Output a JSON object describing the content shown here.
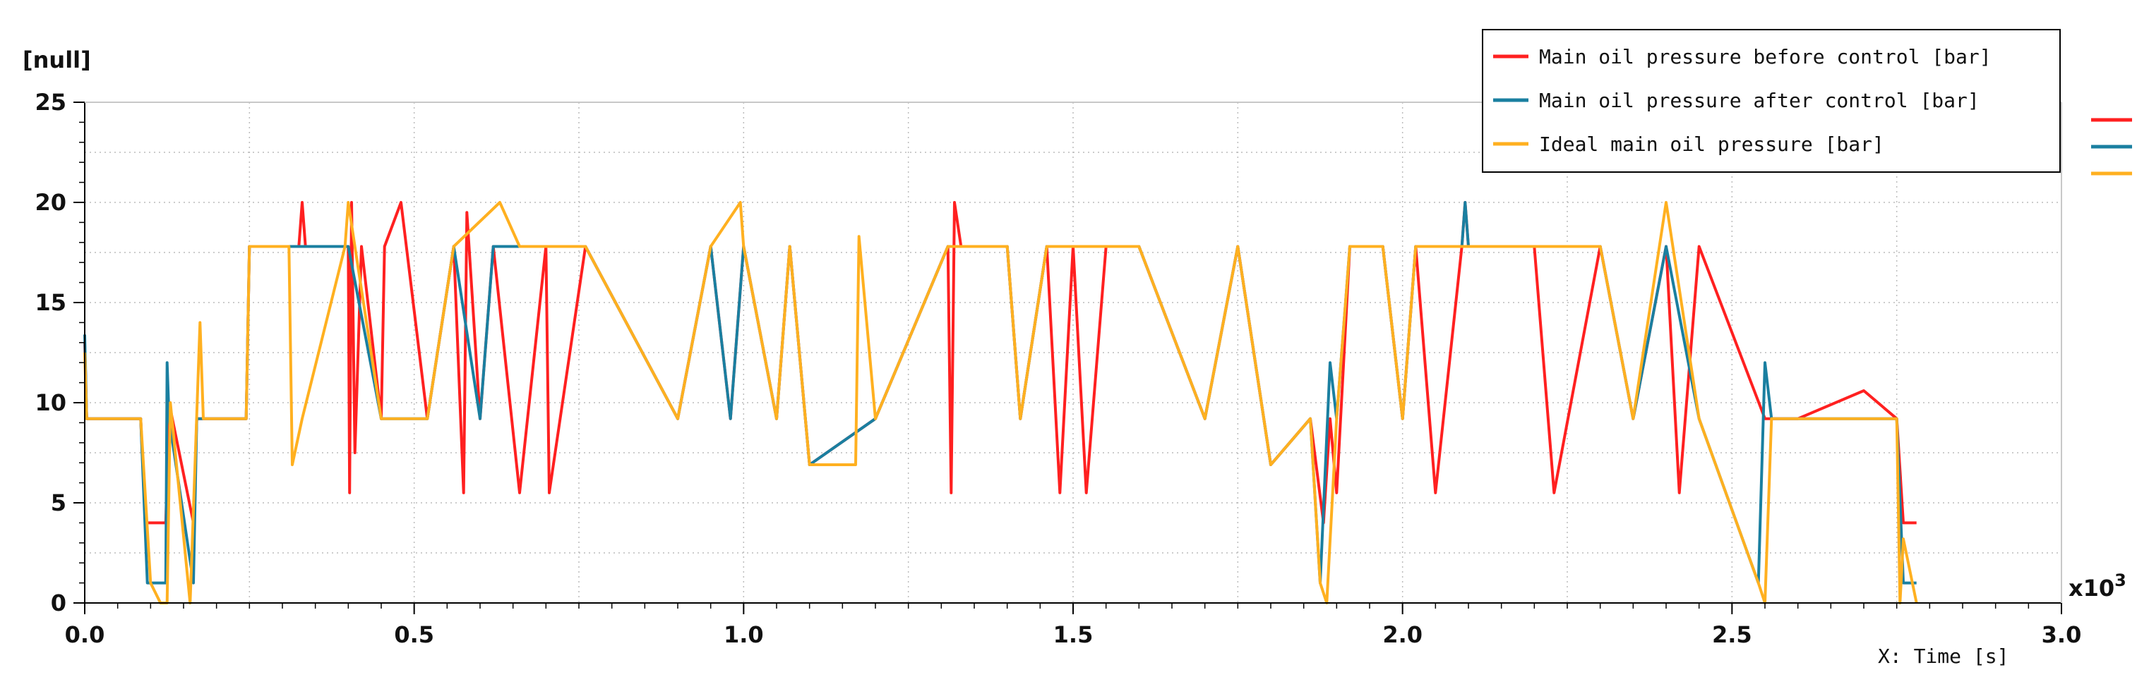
{
  "chart_data": {
    "type": "line",
    "ylabel": "[null]",
    "xlabel": "X: Time [s]",
    "x_multiplier_label": "x10",
    "x_multiplier_exponent": "3",
    "xlim": [
      0,
      3.0
    ],
    "ylim": [
      0,
      25
    ],
    "x_ticks": [
      "0.0",
      "0.5",
      "1.0",
      "1.5",
      "2.0",
      "2.5",
      "3.0"
    ],
    "y_ticks": [
      "0",
      "5",
      "10",
      "15",
      "20",
      "25"
    ],
    "grid": true,
    "legend_position": "top-right",
    "series": [
      {
        "name": "Main oil pressure before control [bar]",
        "color": "#ff2020",
        "x": [
          0.0,
          0.003,
          0.006,
          0.085,
          0.092,
          0.123,
          0.128,
          0.165,
          0.17,
          0.245,
          0.25,
          0.325,
          0.33,
          0.335,
          0.4,
          0.402,
          0.405,
          0.41,
          0.42,
          0.45,
          0.455,
          0.48,
          0.52,
          0.56,
          0.575,
          0.58,
          0.6,
          0.62,
          0.66,
          0.7,
          0.705,
          0.76,
          0.9,
          0.95,
          0.98,
          1.0,
          1.05,
          1.07,
          1.1,
          1.2,
          1.31,
          1.315,
          1.32,
          1.33,
          1.4,
          1.42,
          1.46,
          1.48,
          1.5,
          1.52,
          1.55,
          1.6,
          1.7,
          1.75,
          1.8,
          1.86,
          1.88,
          1.89,
          1.9,
          1.92,
          1.97,
          2.0,
          2.02,
          2.05,
          2.09,
          2.095,
          2.1,
          2.2,
          2.23,
          2.3,
          2.35,
          2.4,
          2.42,
          2.45,
          2.55,
          2.56,
          2.6,
          2.7,
          2.75,
          2.76,
          2.78
        ],
        "y": [
          13.0,
          9.2,
          9.2,
          9.2,
          4.0,
          4.0,
          10.0,
          4.0,
          9.2,
          9.2,
          17.8,
          17.8,
          20.0,
          17.8,
          17.8,
          5.5,
          20.0,
          7.5,
          17.8,
          9.2,
          17.8,
          20.0,
          9.2,
          17.8,
          5.5,
          19.5,
          9.2,
          17.8,
          5.5,
          17.8,
          5.5,
          17.8,
          9.2,
          17.8,
          9.2,
          17.8,
          9.2,
          17.8,
          6.9,
          9.2,
          17.8,
          5.5,
          20.0,
          17.8,
          17.8,
          9.2,
          17.8,
          5.5,
          17.8,
          5.5,
          17.8,
          17.8,
          9.2,
          17.8,
          6.9,
          9.2,
          4.0,
          9.2,
          5.5,
          17.8,
          17.8,
          9.2,
          17.8,
          5.5,
          17.8,
          20.0,
          17.8,
          17.8,
          5.5,
          17.8,
          9.2,
          17.8,
          5.5,
          17.8,
          9.2,
          9.2,
          9.2,
          10.6,
          9.2,
          4.0,
          4.0
        ]
      },
      {
        "name": "Main oil pressure after control [bar]",
        "color": "#1a7fa0",
        "x": [
          0.0,
          0.003,
          0.006,
          0.085,
          0.095,
          0.123,
          0.125,
          0.128,
          0.165,
          0.17,
          0.245,
          0.25,
          0.325,
          0.33,
          0.4,
          0.45,
          0.52,
          0.56,
          0.6,
          0.62,
          0.76,
          0.9,
          0.95,
          0.98,
          1.0,
          1.05,
          1.07,
          1.1,
          1.2,
          1.31,
          1.32,
          1.4,
          1.42,
          1.46,
          1.5,
          1.52,
          1.6,
          1.7,
          1.75,
          1.8,
          1.86,
          1.875,
          1.89,
          1.9,
          1.92,
          1.97,
          2.0,
          2.02,
          2.09,
          2.095,
          2.1,
          2.3,
          2.35,
          2.4,
          2.45,
          2.54,
          2.55,
          2.56,
          2.6,
          2.75,
          2.76,
          2.78
        ],
        "y": [
          13.4,
          9.2,
          9.2,
          9.2,
          1.0,
          1.0,
          12.0,
          9.2,
          1.0,
          9.2,
          9.2,
          17.8,
          17.8,
          17.8,
          17.8,
          9.2,
          9.2,
          17.8,
          9.2,
          17.8,
          17.8,
          9.2,
          17.8,
          9.2,
          17.8,
          9.2,
          17.8,
          6.9,
          9.2,
          17.8,
          17.8,
          17.8,
          9.2,
          17.8,
          17.8,
          17.8,
          17.8,
          9.2,
          17.8,
          6.9,
          9.2,
          1.0,
          12.0,
          9.2,
          17.8,
          17.8,
          9.2,
          17.8,
          17.8,
          20.0,
          17.8,
          17.8,
          9.2,
          17.8,
          9.2,
          1.0,
          12.0,
          9.2,
          9.2,
          9.2,
          1.0,
          1.0
        ]
      },
      {
        "name": "Ideal main oil pressure [bar]",
        "color": "#ffb020",
        "x": [
          0.0,
          0.003,
          0.006,
          0.085,
          0.1,
          0.115,
          0.125,
          0.13,
          0.16,
          0.175,
          0.18,
          0.245,
          0.25,
          0.31,
          0.315,
          0.33,
          0.395,
          0.4,
          0.41,
          0.45,
          0.52,
          0.56,
          0.63,
          0.66,
          0.76,
          0.9,
          0.95,
          0.995,
          1.0,
          1.05,
          1.07,
          1.1,
          1.17,
          1.175,
          1.2,
          1.31,
          1.32,
          1.4,
          1.42,
          1.46,
          1.5,
          1.52,
          1.6,
          1.7,
          1.75,
          1.8,
          1.86,
          1.875,
          1.885,
          1.9,
          1.92,
          1.97,
          2.0,
          2.02,
          2.1,
          2.3,
          2.35,
          2.4,
          2.45,
          2.54,
          2.55,
          2.56,
          2.6,
          2.75,
          2.755,
          2.76,
          2.78
        ],
        "y": [
          12.5,
          9.2,
          9.2,
          9.2,
          1.0,
          0.0,
          0.0,
          10.0,
          0.0,
          14.0,
          9.2,
          9.2,
          17.8,
          17.8,
          6.9,
          9.2,
          17.8,
          20.0,
          17.8,
          9.2,
          9.2,
          17.8,
          20.0,
          17.8,
          17.8,
          9.2,
          17.8,
          20.0,
          17.8,
          9.2,
          17.8,
          6.9,
          6.9,
          18.3,
          9.2,
          17.8,
          17.8,
          17.8,
          9.2,
          17.8,
          17.8,
          17.8,
          17.8,
          9.2,
          17.8,
          6.9,
          9.2,
          1.0,
          0.0,
          9.2,
          17.8,
          17.8,
          9.2,
          17.8,
          17.8,
          17.8,
          9.2,
          20.0,
          9.2,
          1.0,
          0.0,
          9.2,
          9.2,
          9.2,
          0.0,
          3.2,
          0.0
        ]
      }
    ]
  }
}
